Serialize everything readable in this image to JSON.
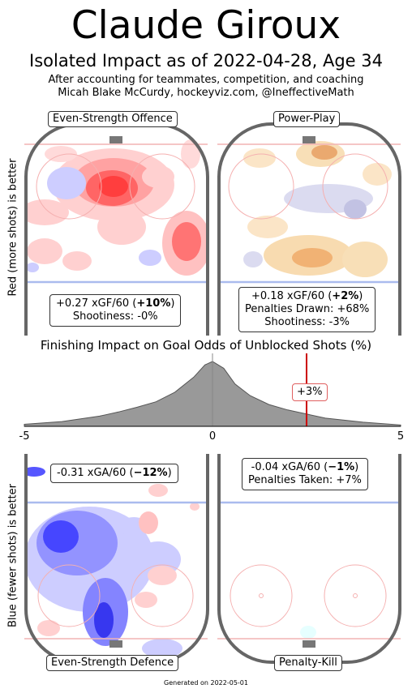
{
  "header": {
    "title": "Claude Giroux",
    "subtitle": "Isolated Impact as of 2022-04-28, Age 34",
    "line1": "After accounting for teammates, competition, and coaching",
    "line2": "Micah Blake McCurdy, hockeyviz.com, @IneffectiveMath"
  },
  "side_labels": {
    "top": "Red (more shots) is better",
    "bottom": "Blue (fewer shots) is better"
  },
  "panels": {
    "es_offence": {
      "label": "Even-Strength Offence",
      "xg_prefix": "+0.27 xGF/60 (",
      "xg_pct": "+10%",
      "xg_suffix": ")",
      "line2": "Shootiness: -0%"
    },
    "power_play": {
      "label": "Power-Play",
      "xg_prefix": "+0.18 xGF/60 (",
      "xg_pct": "+2%",
      "xg_suffix": ")",
      "line2": "Penalties Drawn: +68%",
      "line3": "Shootiness: -3%"
    },
    "es_defence": {
      "label": "Even-Strength Defence",
      "xg_prefix": "-0.31 xGA/60 (",
      "xg_pct": "−12%",
      "xg_suffix": ")"
    },
    "penalty_kill": {
      "label": "Penalty-Kill",
      "xg_prefix": "-0.04 xGA/60 (",
      "xg_pct": "−1%",
      "xg_suffix": ")",
      "line2": "Penalties Taken: +7%"
    }
  },
  "footer": "Generated on 2022-05-01",
  "colors": {
    "boards": "#666666",
    "red": "#ff3333",
    "blue": "#3333ff",
    "orange": "#f0a050",
    "dist_fill": "#999999",
    "marker": "#cc0000"
  },
  "chart_data": {
    "type": "area",
    "title": "Finishing Impact on Goal Odds of Unblocked Shots (%)",
    "xlim": [
      -5,
      5
    ],
    "ticks": [
      "-5",
      "0",
      "5"
    ],
    "x": [
      -5,
      -4,
      -3,
      -2.5,
      -2,
      -1.5,
      -1,
      -0.5,
      -0.2,
      0,
      0.3,
      0.6,
      1,
      1.5,
      2,
      2.5,
      3,
      4,
      5
    ],
    "density": [
      0.03,
      0.07,
      0.15,
      0.21,
      0.28,
      0.36,
      0.5,
      0.72,
      0.9,
      0.95,
      0.85,
      0.62,
      0.45,
      0.32,
      0.24,
      0.18,
      0.12,
      0.06,
      0.02
    ],
    "player_value": 2.5,
    "player_label": "+3%"
  }
}
